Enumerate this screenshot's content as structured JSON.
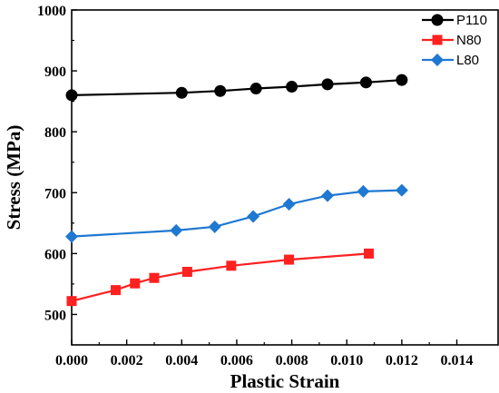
{
  "chart_data": {
    "type": "line",
    "xlabel": "Plastic Strain",
    "ylabel": "Stress (MPa)",
    "xlim": [
      0,
      0.0155
    ],
    "ylim": [
      450,
      1000
    ],
    "x_ticks": [
      0.0,
      0.002,
      0.004,
      0.006,
      0.008,
      0.01,
      0.012,
      0.014
    ],
    "x_tick_labels": [
      "0.000",
      "0.002",
      "0.004",
      "0.006",
      "0.008",
      "0.010",
      "0.012",
      "0.014"
    ],
    "y_ticks": [
      500,
      600,
      700,
      800,
      900,
      1000
    ],
    "y_tick_labels": [
      "500",
      "600",
      "700",
      "800",
      "900",
      "1000"
    ],
    "grid": false,
    "legend_position": "top-right",
    "series": [
      {
        "name": "P110",
        "color": "#000000",
        "marker": "circle",
        "x": [
          0.0,
          0.004,
          0.0054,
          0.0067,
          0.008,
          0.0093,
          0.0107,
          0.012
        ],
        "y": [
          860,
          864,
          867,
          871,
          874,
          878,
          881,
          885
        ]
      },
      {
        "name": "N80",
        "color": "#ff2020",
        "marker": "square",
        "x": [
          0.0,
          0.0016,
          0.0023,
          0.003,
          0.0042,
          0.0058,
          0.0079,
          0.0108
        ],
        "y": [
          522,
          540,
          551,
          560,
          570,
          580,
          590,
          600
        ]
      },
      {
        "name": "L80",
        "color": "#1f78d1",
        "marker": "diamond",
        "x": [
          0.0,
          0.0038,
          0.0052,
          0.0066,
          0.0079,
          0.0093,
          0.0106,
          0.012
        ],
        "y": [
          628,
          638,
          644,
          661,
          681,
          695,
          702,
          704
        ]
      }
    ]
  }
}
